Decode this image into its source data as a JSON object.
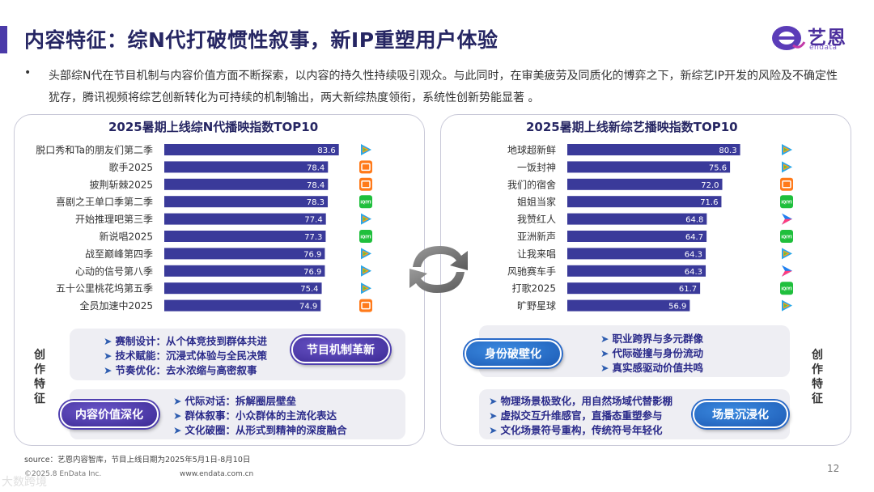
{
  "header": {
    "title": "内容特征：综N代打破惯性叙事，新IP重塑用户体验",
    "logo_text": "艺恩",
    "logo_sub": "endata",
    "brand_color": "#4a3aa8"
  },
  "intro": {
    "bullet": "•",
    "text": "头部综N代在节目机制与内容价值方面不断探索，以内容的持久性持续吸引观众。与此同时，在审美疲劳及同质化的博弈之下，新综艺IP开发的风险及不确定性犹存，腾讯视频将综艺创新转化为可持续的机制输出，两大新综热度领衔，系统性创新势能显著 。"
  },
  "chart_data": [
    {
      "type": "bar",
      "orientation": "horizontal",
      "title": "2025暑期上线综N代播映指数TOP10",
      "categories": [
        "脱口秀和Ta的朋友们第二季",
        "歌手2025",
        "披荆斩棘2025",
        "喜剧之王单口季第二季",
        "开始推理吧第三季",
        "新说唱2025",
        "战至巅峰第四季",
        "心动的信号第八季",
        "五十公里桃花坞第五季",
        "全员加速中2025"
      ],
      "values": [
        83.6,
        78.4,
        78.4,
        78.3,
        77.4,
        77.3,
        76.9,
        76.9,
        75.4,
        74.9
      ],
      "platforms": [
        "tencent",
        "mango",
        "mango",
        "iqiyi",
        "tencent",
        "iqiyi",
        "tencent",
        "tencent",
        "tencent",
        "mango"
      ],
      "bar_color": "#3a3a9a",
      "xlim": [
        0,
        100
      ]
    },
    {
      "type": "bar",
      "orientation": "horizontal",
      "title": "2025暑期上线新综艺播映指数TOP10",
      "categories": [
        "地球超新鲜",
        "一饭封神",
        "我们的宿舍",
        "姐姐当家",
        "我赞红人",
        "亚洲新声",
        "让我来唱",
        "风驰赛车手",
        "打歌2025",
        "旷野星球"
      ],
      "values": [
        80.3,
        75.6,
        72.0,
        71.6,
        64.8,
        64.7,
        64.3,
        64.3,
        61.7,
        56.9
      ],
      "platforms": [
        "tencent",
        "tencent",
        "mango",
        "iqiyi",
        "youku",
        "iqiyi",
        "tencent",
        "youku",
        "iqiyi",
        "tencent"
      ],
      "bar_color": "#3a3a9a",
      "xlim": [
        0,
        100
      ]
    }
  ],
  "platform_logos": {
    "iqiyi": "iQIYI"
  },
  "left_panel": {
    "side_label": [
      "创",
      "作",
      "特",
      "征"
    ],
    "box1_items": [
      "赛制设计：从个体竞技到群体共进",
      "技术赋能：沉浸式体验与全民决策",
      "节奏优化：去水浓缩与高密叙事"
    ],
    "box1_pill": "节目机制革新",
    "box2_items": [
      "代际对话：拆解圈层壁垒",
      "群体叙事：小众群体的主流化表达",
      "文化破圈：从形式到精神的深度融合"
    ],
    "box2_pill": "内容价值深化"
  },
  "right_panel": {
    "side_label": [
      "创",
      "作",
      "特",
      "征"
    ],
    "box1_items": [
      "职业跨界与多元群像",
      "代际碰撞与身份流动",
      "真实感驱动价值共鸣"
    ],
    "box1_pill": "身份破壁化",
    "box2_items": [
      "物理场景极致化，用自然场域代替影棚",
      "虚拟交互升维感官，直播态重塑参与",
      "文化场景符号重构，传统符号年轻化"
    ],
    "box2_pill": "场景沉浸化"
  },
  "footer": {
    "source": "source：艺恩内容智库，节目上线日期为2025年5月1日-8月10日",
    "copyright": "©2025.8 EnData Inc.",
    "website": "www.endata.com.cn",
    "page_number": "12",
    "watermark": "大数跨境"
  }
}
